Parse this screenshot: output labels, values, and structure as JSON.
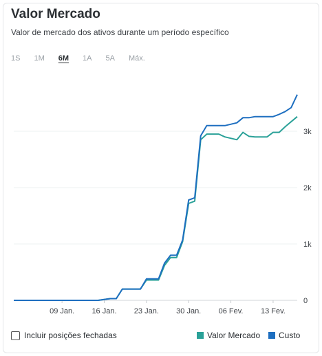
{
  "header": {
    "title": "Valor Mercado",
    "subtitle": "Valor de mercado dos ativos durante um período específico"
  },
  "range_tabs": [
    {
      "label": "1S",
      "active": false
    },
    {
      "label": "1M",
      "active": false
    },
    {
      "label": "6M",
      "active": true
    },
    {
      "label": "1A",
      "active": false
    },
    {
      "label": "5A",
      "active": false
    },
    {
      "label": "Máx.",
      "active": false
    }
  ],
  "footer": {
    "include_closed_label": "Incluir posições fechadas",
    "include_closed_checked": false
  },
  "legend": [
    {
      "label": "Valor Mercado",
      "color": "#2aa198"
    },
    {
      "label": "Custo",
      "color": "#1e6fc0"
    }
  ],
  "chart_data": {
    "type": "line",
    "title": "",
    "xlabel": "",
    "ylabel": "",
    "x_tick_labels": [
      "09 Jan.",
      "16 Jan.",
      "23 Jan.",
      "30 Jan.",
      "06 Fev.",
      "13 Fev."
    ],
    "y_tick_labels": [
      "0",
      "1k",
      "2k",
      "3k"
    ],
    "ylim": [
      0,
      3700
    ],
    "grid": true,
    "legend_position": "bottom-right",
    "series": [
      {
        "name": "Valor Mercado",
        "color": "#2aa198",
        "x": [
          "2025-01-01",
          "2025-01-15",
          "2025-01-17",
          "2025-01-18",
          "2025-01-19",
          "2025-01-22",
          "2025-01-23",
          "2025-01-25",
          "2025-01-26",
          "2025-01-27",
          "2025-01-28",
          "2025-01-29",
          "2025-01-30",
          "2025-01-31",
          "2025-02-01",
          "2025-02-02",
          "2025-02-03",
          "2025-02-04",
          "2025-02-05",
          "2025-02-07",
          "2025-02-08",
          "2025-02-09",
          "2025-02-10",
          "2025-02-12",
          "2025-02-13",
          "2025-02-14",
          "2025-02-15",
          "2025-02-17"
        ],
        "y": [
          0,
          0,
          30,
          30,
          200,
          200,
          360,
          360,
          620,
          760,
          760,
          1040,
          1720,
          1760,
          2850,
          2950,
          2950,
          2950,
          2900,
          2850,
          2980,
          2910,
          2900,
          2900,
          2980,
          2980,
          3080,
          3260
        ]
      },
      {
        "name": "Custo",
        "color": "#1e6fc0",
        "x": [
          "2025-01-01",
          "2025-01-15",
          "2025-01-17",
          "2025-01-18",
          "2025-01-19",
          "2025-01-22",
          "2025-01-23",
          "2025-01-25",
          "2025-01-26",
          "2025-01-27",
          "2025-01-28",
          "2025-01-29",
          "2025-01-30",
          "2025-01-31",
          "2025-02-01",
          "2025-02-02",
          "2025-02-03",
          "2025-02-05",
          "2025-02-07",
          "2025-02-08",
          "2025-02-09",
          "2025-02-10",
          "2025-02-12",
          "2025-02-13",
          "2025-02-14",
          "2025-02-15",
          "2025-02-16",
          "2025-02-17"
        ],
        "y": [
          0,
          0,
          30,
          30,
          200,
          200,
          380,
          380,
          660,
          800,
          800,
          1070,
          1780,
          1820,
          2920,
          3100,
          3100,
          3100,
          3150,
          3240,
          3240,
          3260,
          3260,
          3260,
          3300,
          3350,
          3420,
          3650
        ]
      }
    ]
  }
}
